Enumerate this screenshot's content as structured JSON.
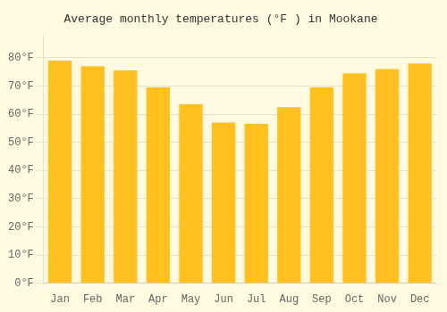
{
  "chart_data": {
    "type": "bar",
    "title": "Average monthly temperatures (°F ) in Mookane",
    "categories": [
      "Jan",
      "Feb",
      "Mar",
      "Apr",
      "May",
      "Jun",
      "Jul",
      "Aug",
      "Sep",
      "Oct",
      "Nov",
      "Dec"
    ],
    "values": [
      79,
      77,
      75.5,
      69.5,
      63.5,
      57,
      56.5,
      62.5,
      69.5,
      74.5,
      76,
      78
    ],
    "color": "#FFC020",
    "ylim": [
      0,
      88
    ],
    "yticks": [
      {
        "value": 0,
        "label": "0°F"
      },
      {
        "value": 10,
        "label": "10°F"
      },
      {
        "value": 20,
        "label": "20°F"
      },
      {
        "value": 30,
        "label": "30°F"
      },
      {
        "value": 40,
        "label": "40°F"
      },
      {
        "value": 50,
        "label": "50°F"
      },
      {
        "value": 60,
        "label": "60°F"
      },
      {
        "value": 70,
        "label": "70°F"
      },
      {
        "value": 80,
        "label": "80°F"
      }
    ],
    "grid": true
  }
}
